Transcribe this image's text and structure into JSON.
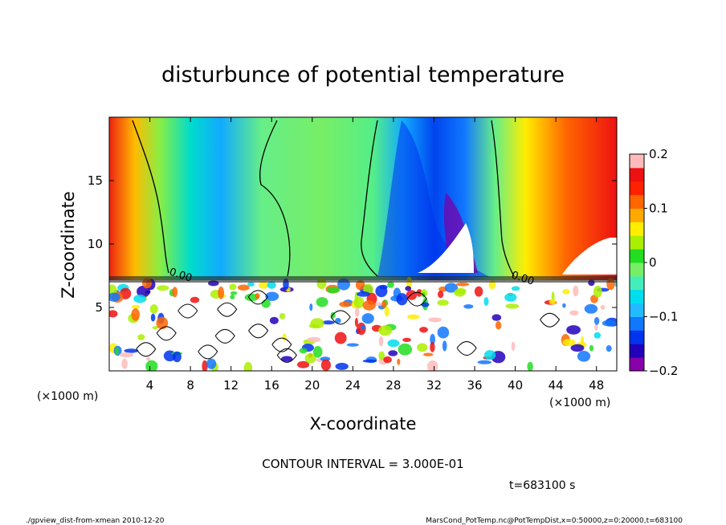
{
  "chart_data": {
    "type": "heatmap",
    "title": "disturbunce of potential temperature",
    "xlabel": "X-coordinate",
    "ylabel": "Z-coordinate",
    "x_unit": "(×1000 m)",
    "y_unit": "(×1000 m)",
    "xlim": [
      0,
      50
    ],
    "ylim": [
      0,
      20
    ],
    "x_ticks": [
      4,
      8,
      12,
      16,
      20,
      24,
      28,
      32,
      36,
      40,
      44,
      48
    ],
    "y_ticks": [
      5,
      10,
      15
    ],
    "colorbar": {
      "range": [
        -0.2,
        0.2
      ],
      "tick_values": [
        0.2,
        0.1,
        0,
        -0.1,
        -0.2
      ],
      "tick_labels": [
        "0.2",
        "0.1",
        "0",
        "−0.1",
        "−0.2"
      ],
      "colors": [
        "#8800aa",
        "#2200bb",
        "#0033ee",
        "#1177ff",
        "#22bbff",
        "#00ddee",
        "#44eebb",
        "#77ee66",
        "#22dd22",
        "#aaee00",
        "#ffee00",
        "#ffaa00",
        "#ff6600",
        "#ff2200",
        "#ee1111",
        "#ffbbbb"
      ]
    },
    "contour_label": "0.00",
    "contour_interval_text": "CONTOUR INTERVAL = 3.000E-01",
    "time_text": "t=683100 s"
  },
  "footer": {
    "left": "./gpview_dist-from-xmean  2010-12-20",
    "right": "MarsCond_PotTemp.nc@PotTempDist,x=0:50000,z=0:20000,t=683100"
  }
}
